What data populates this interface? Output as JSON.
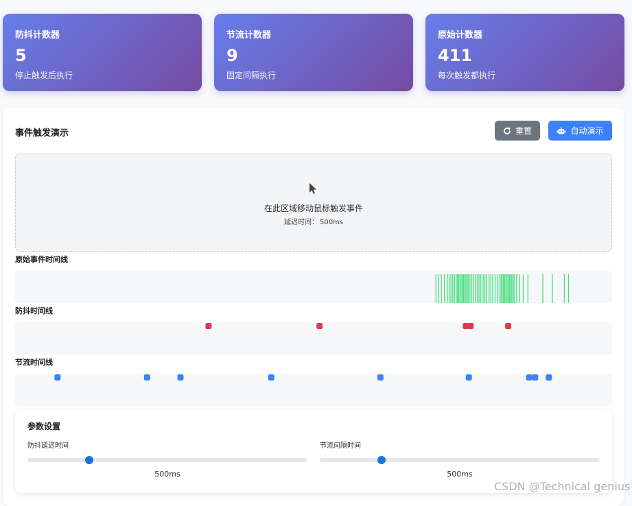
{
  "stats": [
    {
      "title": "防抖计数器",
      "value": "5",
      "desc": "停止触发后执行"
    },
    {
      "title": "节流计数器",
      "value": "9",
      "desc": "固定间隔执行"
    },
    {
      "title": "原始计数器",
      "value": "411",
      "desc": "每次触发都执行"
    }
  ],
  "panel": {
    "title": "事件触发演示",
    "reset_label": "重置",
    "demo_label": "自动演示"
  },
  "area": {
    "text": "在此区域移动鼠标触发事件",
    "delay_label": "延迟时间：",
    "delay_value": "500ms"
  },
  "timelines": {
    "raw": {
      "label": "原始事件时间线",
      "color": "#4ade80",
      "events": [
        0.705,
        0.709,
        0.714,
        0.719,
        0.724,
        0.727,
        0.73,
        0.733,
        0.736,
        0.739,
        0.741,
        0.743,
        0.745,
        0.747,
        0.749,
        0.751,
        0.753,
        0.755,
        0.757,
        0.759,
        0.762,
        0.765,
        0.768,
        0.771,
        0.774,
        0.777,
        0.78,
        0.784,
        0.787,
        0.79,
        0.794,
        0.797,
        0.8,
        0.804,
        0.808,
        0.812,
        0.814,
        0.816,
        0.818,
        0.82,
        0.822,
        0.824,
        0.826,
        0.828,
        0.83,
        0.832,
        0.834,
        0.836,
        0.84,
        0.845,
        0.851,
        0.859,
        0.884,
        0.9,
        0.92,
        0.927
      ]
    },
    "debounce": {
      "label": "防抖时间线",
      "color": "#e03b4a",
      "events": [
        0.324,
        0.51,
        0.755,
        0.763,
        0.826
      ]
    },
    "throttle": {
      "label": "节流时间线",
      "color": "#3b82f6",
      "events": [
        0.071,
        0.221,
        0.277,
        0.429,
        0.612,
        0.76,
        0.861,
        0.871,
        0.894
      ]
    }
  },
  "settings": {
    "title": "参数设置",
    "debounce": {
      "label": "防抖延迟时间",
      "value": "500ms",
      "fraction": 0.22
    },
    "throttle": {
      "label": "节流间隔时间",
      "value": "500ms",
      "fraction": 0.22
    }
  },
  "watermark": "CSDN @Technical genius"
}
